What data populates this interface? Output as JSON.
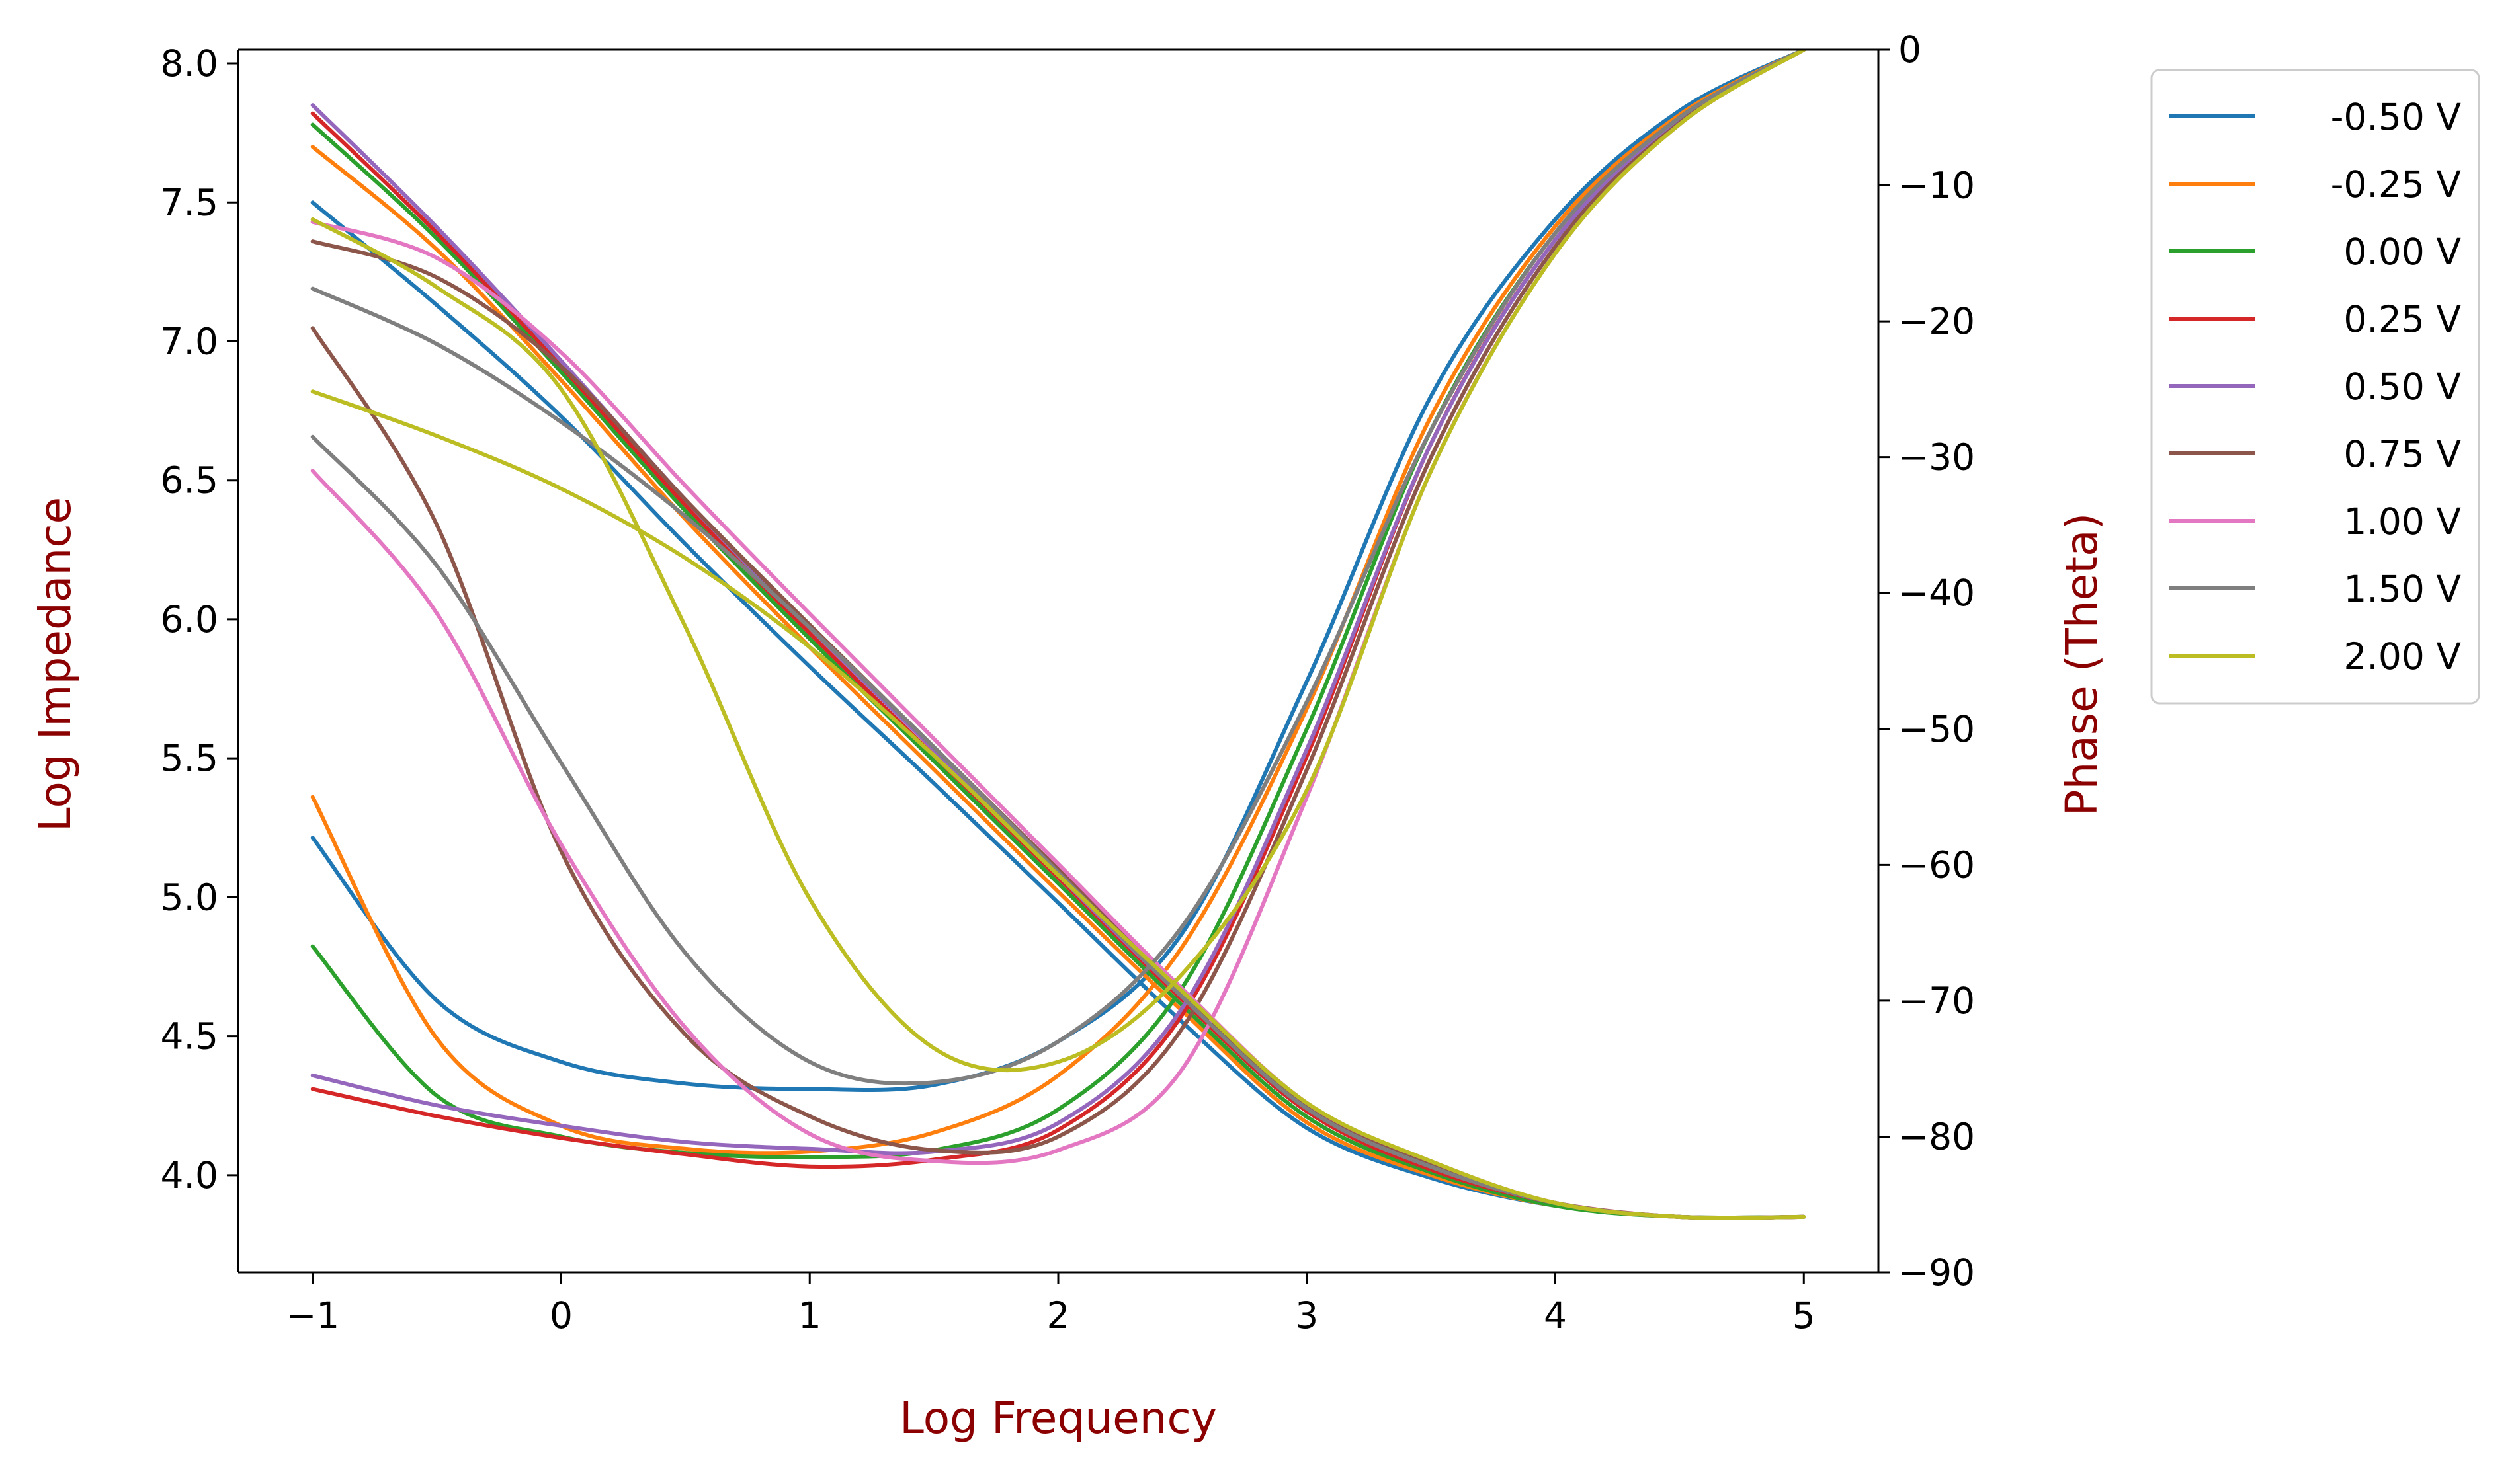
{
  "colors": {
    "axis_label": "#8b0000",
    "series": [
      "#1f77b4",
      "#ff7f0e",
      "#2ca02c",
      "#d62728",
      "#9467bd",
      "#8c564b",
      "#e377c2",
      "#7f7f7f",
      "#bcbd22"
    ]
  },
  "chart_data": {
    "type": "line",
    "title": "",
    "xlabel": "Log Frequency",
    "ylabel": "Log Impedance",
    "y2label": "Phase (Theta)",
    "xlim": [
      -1.3,
      5.3
    ],
    "ylim": [
      3.65,
      8.05
    ],
    "y2lim": [
      -90,
      0
    ],
    "xticks": [
      -1,
      0,
      1,
      2,
      3,
      4,
      5
    ],
    "yticks": [
      4.0,
      4.5,
      5.0,
      5.5,
      6.0,
      6.5,
      7.0,
      7.5,
      8.0
    ],
    "y2ticks": [
      0,
      -10,
      -20,
      -30,
      -40,
      -50,
      -60,
      -70,
      -80,
      -90
    ],
    "grid": false,
    "legend_position": "outside-right",
    "x": [
      -1,
      -0.5,
      0,
      0.5,
      1,
      1.5,
      2,
      2.5,
      3,
      3.5,
      4,
      4.5,
      5
    ],
    "series": [
      {
        "name": "-0.50 V",
        "impedance": [
          7.5,
          7.13,
          6.73,
          6.27,
          5.83,
          5.41,
          4.98,
          4.55,
          4.17,
          3.99,
          3.89,
          3.85,
          3.85
        ],
        "phase": [
          -58.0,
          -70.0,
          -74.5,
          -76.1,
          -76.5,
          -76.2,
          -73.0,
          -65.0,
          -46.5,
          -25.5,
          -12.5,
          -4.5,
          0.0
        ]
      },
      {
        "name": "-0.25 V",
        "impedance": [
          7.7,
          7.33,
          6.86,
          6.36,
          5.9,
          5.46,
          5.02,
          4.59,
          4.19,
          4.0,
          3.89,
          3.85,
          3.85
        ],
        "phase": [
          -55.0,
          -72.8,
          -79.2,
          -80.9,
          -81.1,
          -79.7,
          -75.5,
          -66.0,
          -48.5,
          -27.0,
          -13.0,
          -4.8,
          0.0
        ]
      },
      {
        "name": "0.00 V",
        "impedance": [
          7.78,
          7.37,
          6.89,
          6.39,
          5.93,
          5.49,
          5.05,
          4.61,
          4.21,
          4.01,
          3.89,
          3.85,
          3.85
        ],
        "phase": [
          -66.0,
          -77.0,
          -80.0,
          -81.2,
          -81.5,
          -81.0,
          -78.0,
          -69.0,
          -50.0,
          -28.0,
          -13.5,
          -5.0,
          0.0
        ]
      },
      {
        "name": "0.25 V",
        "impedance": [
          7.82,
          7.39,
          6.91,
          6.41,
          5.95,
          5.51,
          5.07,
          4.63,
          4.23,
          4.02,
          3.9,
          3.85,
          3.85
        ],
        "phase": [
          -76.5,
          -78.5,
          -80.1,
          -81.3,
          -82.2,
          -81.7,
          -79.5,
          -71.0,
          -52.0,
          -29.0,
          -14.0,
          -5.2,
          0.0
        ]
      },
      {
        "name": "0.50 V",
        "impedance": [
          7.85,
          7.41,
          6.93,
          6.43,
          5.97,
          5.53,
          5.08,
          4.64,
          4.24,
          4.03,
          3.9,
          3.85,
          3.85
        ],
        "phase": [
          -75.5,
          -77.7,
          -79.2,
          -80.4,
          -80.9,
          -81.1,
          -79.0,
          -70.5,
          -51.5,
          -29.0,
          -14.0,
          -5.2,
          0.0
        ]
      },
      {
        "name": "0.75 V",
        "impedance": [
          7.36,
          7.23,
          6.91,
          6.43,
          5.98,
          5.54,
          5.1,
          4.66,
          4.25,
          4.04,
          3.9,
          3.85,
          3.85
        ],
        "phase": [
          -20.5,
          -35.0,
          -59.0,
          -72.5,
          -78.5,
          -81.0,
          -80.0,
          -72.0,
          -53.0,
          -30.0,
          -14.5,
          -5.4,
          0.0
        ]
      },
      {
        "name": "1.00 V",
        "impedance": [
          7.43,
          7.3,
          6.96,
          6.48,
          6.02,
          5.57,
          5.12,
          4.67,
          4.26,
          4.05,
          3.9,
          3.85,
          3.85
        ],
        "phase": [
          -31.0,
          -41.5,
          -58.5,
          -72.0,
          -79.8,
          -81.8,
          -81.0,
          -75.0,
          -55.0,
          -31.0,
          -15.0,
          -5.5,
          0.0
        ]
      },
      {
        "name": "1.50 V",
        "impedance": [
          7.19,
          6.99,
          6.71,
          6.37,
          5.97,
          5.54,
          5.09,
          4.64,
          4.24,
          4.03,
          3.9,
          3.85,
          3.85
        ],
        "phase": [
          -28.5,
          -38.0,
          -52.5,
          -66.5,
          -74.5,
          -76.0,
          -73.0,
          -64.5,
          -48.0,
          -28.0,
          -13.5,
          -5.0,
          0.0
        ]
      },
      {
        "name": "2.00 V",
        "impedance": [
          6.82,
          6.66,
          6.47,
          6.22,
          5.9,
          5.51,
          5.08,
          4.66,
          4.26,
          4.05,
          3.9,
          3.85,
          3.85
        ],
        "phase": [
          -12.5,
          -17.5,
          -25.0,
          -42.5,
          -62.5,
          -73.5,
          -74.5,
          -68.0,
          -54.5,
          -31.0,
          -15.0,
          -5.5,
          0.0
        ]
      }
    ]
  }
}
